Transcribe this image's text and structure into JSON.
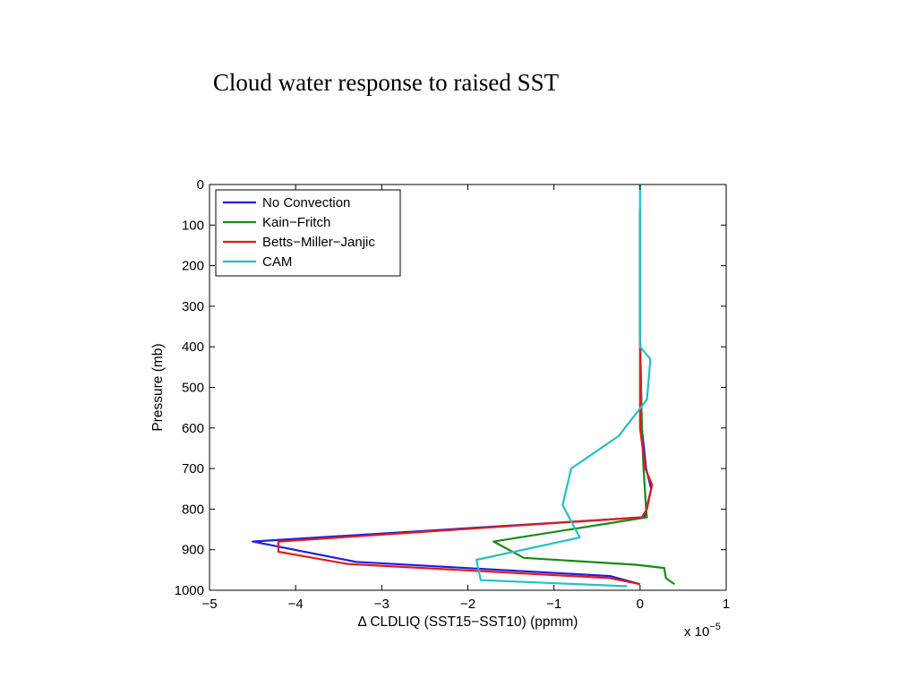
{
  "slide": {
    "title": "Cloud water response to raised SST"
  },
  "chart_data": {
    "type": "line",
    "orientation": "profile (x = value, y = pressure, inverted)",
    "title": "",
    "xlabel": "Δ CLDLIQ (SST15−SST10) (ppmm)",
    "ylabel": "Pressure (mb)",
    "x_multiplier": "x 10",
    "x_multiplier_exponent": "−5",
    "xlim": [
      -5,
      1
    ],
    "ylim": [
      1000,
      0
    ],
    "y_inverted": true,
    "xticks": [
      -5,
      -4,
      -3,
      -2,
      -1,
      0,
      1
    ],
    "xtick_labels": [
      "−5",
      "−4",
      "−3",
      "−2",
      "−1",
      "0",
      "1"
    ],
    "yticks": [
      0,
      100,
      200,
      300,
      400,
      500,
      600,
      700,
      800,
      900,
      1000
    ],
    "ytick_labels": [
      "0",
      "100",
      "200",
      "300",
      "400",
      "500",
      "600",
      "700",
      "800",
      "900",
      "1000"
    ],
    "grid": false,
    "legend_position": "top-left",
    "series": [
      {
        "name": "No Convection",
        "color": "#1f1fe0",
        "points": [
          [
            0,
            60
          ],
          [
            0,
            370
          ],
          [
            0.02,
            600
          ],
          [
            0.07,
            700
          ],
          [
            0.13,
            750
          ],
          [
            0.05,
            820
          ],
          [
            -4.5,
            880
          ],
          [
            -3.3,
            930
          ],
          [
            -0.35,
            965
          ],
          [
            0,
            985
          ]
        ]
      },
      {
        "name": "Kain−Fritch",
        "color": "#1a8a1a",
        "points": [
          [
            0,
            60
          ],
          [
            0,
            370
          ],
          [
            0.02,
            600
          ],
          [
            0.04,
            700
          ],
          [
            0.07,
            800
          ],
          [
            0.08,
            820
          ],
          [
            -1.7,
            880
          ],
          [
            -1.35,
            920
          ],
          [
            -0.05,
            937
          ],
          [
            0.28,
            945
          ],
          [
            0.3,
            970
          ],
          [
            0.4,
            985
          ]
        ]
      },
      {
        "name": "Betts−Miller−Janjic",
        "color": "#e01c1c",
        "points": [
          [
            0,
            370
          ],
          [
            0,
            600
          ],
          [
            0.06,
            700
          ],
          [
            0.14,
            740
          ],
          [
            0.08,
            800
          ],
          [
            0.02,
            820
          ],
          [
            -4.2,
            880
          ],
          [
            -4.2,
            905
          ],
          [
            -3.4,
            935
          ],
          [
            -0.35,
            970
          ],
          [
            0,
            985
          ]
        ]
      },
      {
        "name": "CAM",
        "color": "#22c0c8",
        "points": [
          [
            0,
            0
          ],
          [
            0,
            100
          ],
          [
            0,
            200
          ],
          [
            0,
            300
          ],
          [
            0,
            400
          ],
          [
            0.12,
            430
          ],
          [
            0.08,
            530
          ],
          [
            -0.25,
            620
          ],
          [
            -0.8,
            700
          ],
          [
            -0.9,
            790
          ],
          [
            -0.75,
            850
          ],
          [
            -0.7,
            870
          ],
          [
            -1.9,
            925
          ],
          [
            -1.85,
            975
          ],
          [
            -0.15,
            990
          ]
        ]
      }
    ]
  }
}
